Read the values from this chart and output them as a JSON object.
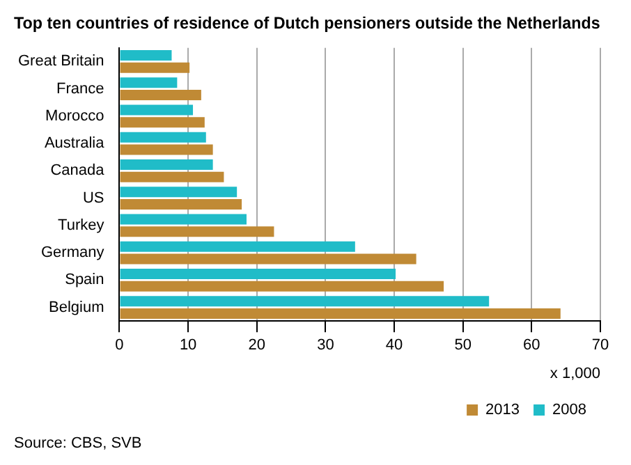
{
  "chart_data": {
    "type": "bar",
    "orientation": "horizontal",
    "title": "Top ten countries of residence of Dutch pensioners outside the Netherlands",
    "xlabel": "x 1,000",
    "annotations": [
      "Source: CBS, SVB"
    ],
    "categories": [
      "Great Britain",
      "France",
      "Morocco",
      "Australia",
      "Canada",
      "US",
      "Turkey",
      "Germany",
      "Spain",
      "Belgium"
    ],
    "series": [
      {
        "name": "2013",
        "color": "#c08a35",
        "values": [
          10.2,
          11.9,
          12.4,
          13.6,
          15.2,
          17.8,
          22.5,
          43.2,
          47.2,
          64.2
        ]
      },
      {
        "name": "2008",
        "color": "#20bcc8",
        "values": [
          7.6,
          8.4,
          10.7,
          12.6,
          13.6,
          17.1,
          18.5,
          34.3,
          40.2,
          53.8
        ]
      }
    ],
    "xlim": [
      0,
      70
    ],
    "xticks": [
      0,
      10,
      20,
      30,
      40,
      50,
      60,
      70
    ],
    "grid": "x",
    "legend": "bottom"
  }
}
